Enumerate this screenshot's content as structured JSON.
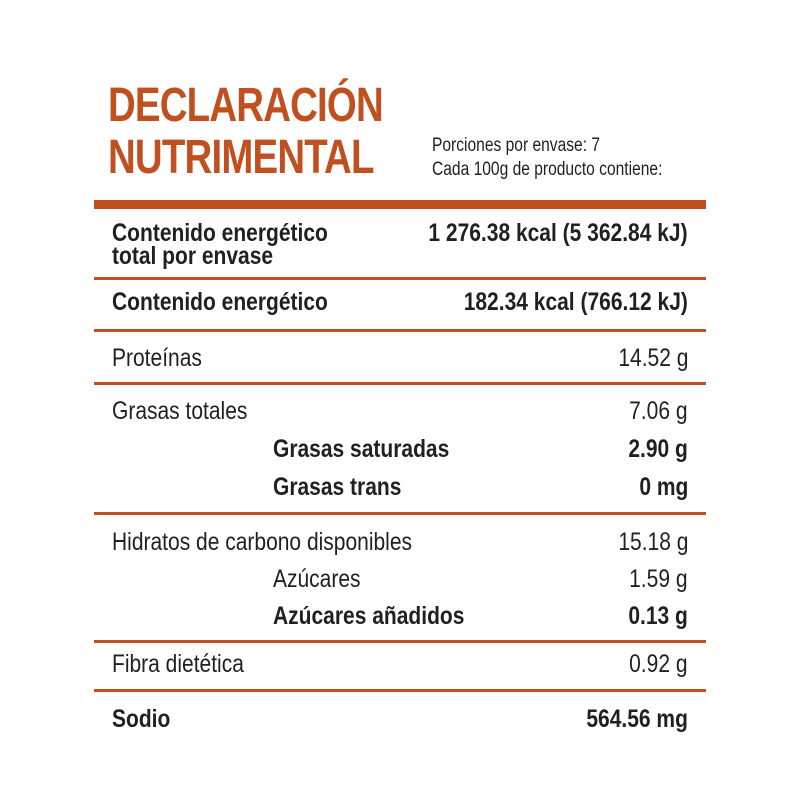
{
  "title": {
    "line1": "DECLARACIÓN",
    "line2": "NUTRIMENTAL"
  },
  "meta": {
    "portions": "Porciones por envase: 7",
    "per100": "Cada 100g de producto contiene:"
  },
  "rows": {
    "energy_total": {
      "label_line1": "Contenido energético",
      "label_line2": "total por envase",
      "value": "1 276.38 kcal (5 362.84 kJ)"
    },
    "energy": {
      "label": "Contenido energético",
      "value": "182.34 kcal (766.12 kJ)"
    },
    "protein": {
      "label": "Proteínas",
      "value": "14.52 g"
    },
    "fat_total": {
      "label": "Grasas totales",
      "value": "7.06 g"
    },
    "fat_sat": {
      "label": "Grasas saturadas",
      "value": "2.90 g"
    },
    "fat_trans": {
      "label": "Grasas trans",
      "value": "0 mg"
    },
    "carbs": {
      "label": "Hidratos de carbono disponibles",
      "value": "15.18 g"
    },
    "sugars": {
      "label": "Azúcares",
      "value": "1.59 g"
    },
    "sugars_added": {
      "label": "Azúcares añadidos",
      "value": "0.13 g"
    },
    "fiber": {
      "label": "Fibra dietética",
      "value": "0.92 g"
    },
    "sodium": {
      "label": "Sodio",
      "value": "564.56 mg"
    }
  },
  "colors": {
    "accent": "#c0501f",
    "text": "#231f20"
  }
}
